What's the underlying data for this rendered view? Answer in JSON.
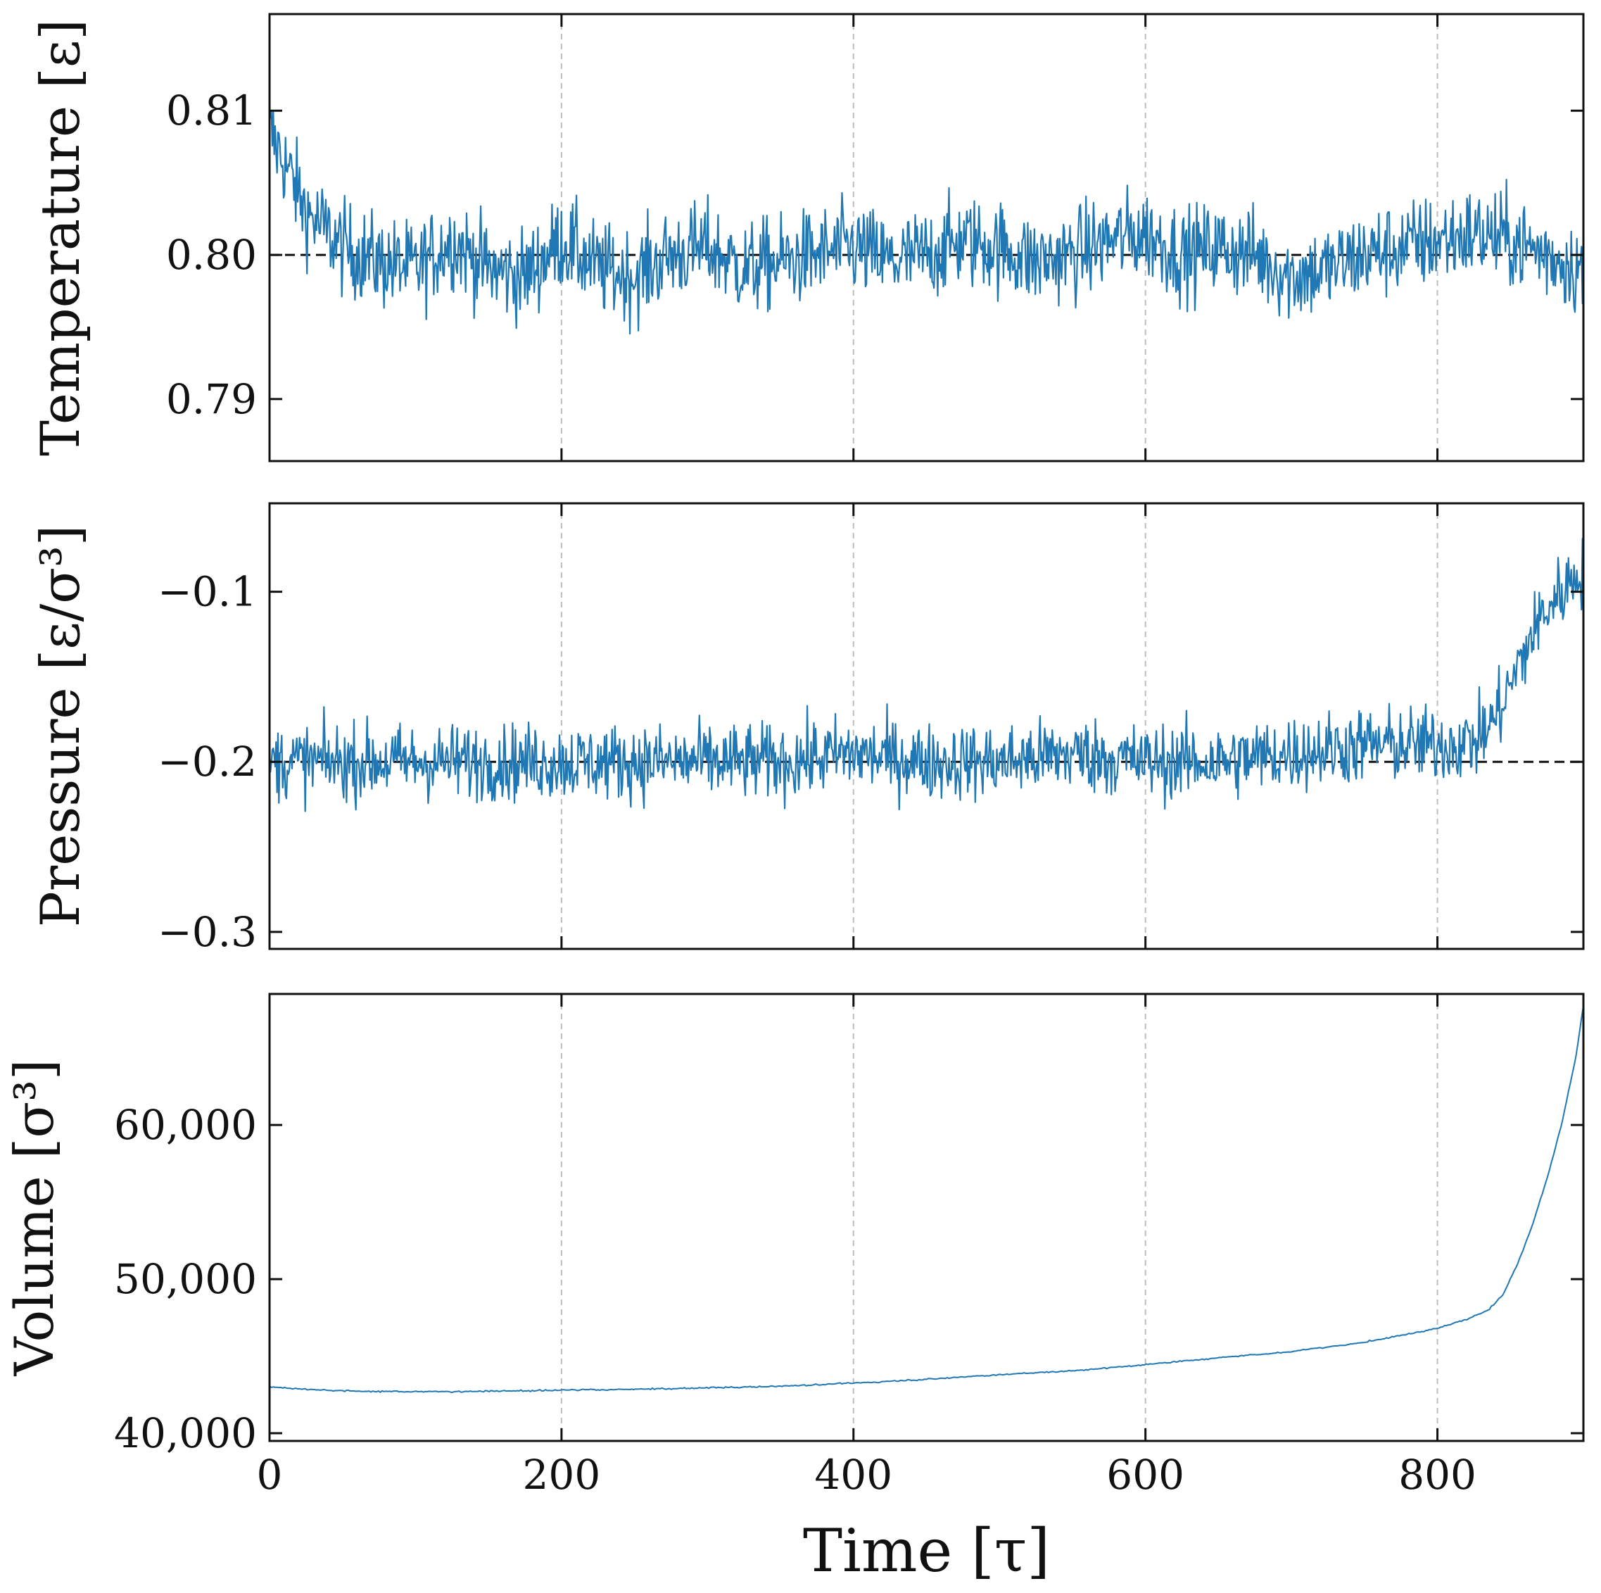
{
  "chart_data": [
    {
      "type": "line",
      "panel": "temperature",
      "ylabel": "Temperature [ε]",
      "ylim": [
        0.7857,
        0.8167
      ],
      "yticks": [
        0.79,
        0.8,
        0.81
      ],
      "ytick_labels": [
        "0.79",
        "0.80",
        "0.81"
      ],
      "xlim": [
        0,
        900
      ],
      "reference_line": 0.8,
      "color": "#1f77b4",
      "series": [
        {
          "name": "Temperature",
          "x": [
            0,
            10,
            25,
            50,
            75,
            100,
            125,
            150,
            175,
            200,
            225,
            250,
            275,
            300,
            325,
            350,
            375,
            400,
            425,
            450,
            475,
            500,
            525,
            550,
            575,
            600,
            625,
            650,
            675,
            700,
            725,
            750,
            775,
            800,
            825,
            850,
            875,
            900
          ],
          "y": [
            0.8085,
            0.8065,
            0.803,
            0.8005,
            0.7995,
            0.799,
            0.801,
            0.799,
            0.7985,
            0.801,
            0.799,
            0.7985,
            0.8,
            0.8005,
            0.799,
            0.7995,
            0.8,
            0.8005,
            0.7995,
            0.8,
            0.801,
            0.8005,
            0.7995,
            0.8,
            0.801,
            0.8015,
            0.8,
            0.8005,
            0.8,
            0.7985,
            0.799,
            0.8,
            0.8005,
            0.801,
            0.8015,
            0.801,
            0.8,
            0.799
          ]
        }
      ]
    },
    {
      "type": "line",
      "panel": "pressure",
      "ylabel": "Pressure [ε/σ³]",
      "ylim": [
        -0.31,
        -0.048
      ],
      "yticks": [
        -0.3,
        -0.2,
        -0.1
      ],
      "ytick_labels": [
        "−0.3",
        "−0.2",
        "−0.1"
      ],
      "xlim": [
        0,
        900
      ],
      "reference_line": -0.2,
      "color": "#1f77b4",
      "series": [
        {
          "name": "Pressure",
          "x": [
            0,
            50,
            100,
            150,
            200,
            250,
            300,
            350,
            400,
            450,
            500,
            550,
            600,
            650,
            700,
            750,
            800,
            825,
            835,
            845,
            855,
            865,
            875,
            885,
            900
          ],
          "y": [
            -0.2,
            -0.2,
            -0.2,
            -0.2,
            -0.2,
            -0.2,
            -0.2,
            -0.2,
            -0.195,
            -0.2,
            -0.2,
            -0.195,
            -0.2,
            -0.2,
            -0.195,
            -0.19,
            -0.19,
            -0.188,
            -0.18,
            -0.165,
            -0.145,
            -0.125,
            -0.11,
            -0.1,
            -0.085
          ]
        }
      ]
    },
    {
      "type": "line",
      "panel": "volume",
      "ylabel": "Volume [σ³]",
      "ylim": [
        39500,
        68500
      ],
      "yticks": [
        40000,
        50000,
        60000
      ],
      "ytick_labels": [
        "40,000",
        "50,000",
        "60,000"
      ],
      "xlim": [
        0,
        900
      ],
      "xticks": [
        0,
        200,
        400,
        600,
        800
      ],
      "xtick_labels": [
        "0",
        "200",
        "400",
        "600",
        "800"
      ],
      "xlabel": "Time [τ]",
      "color": "#1f77b4",
      "series": [
        {
          "name": "Volume",
          "x": [
            0,
            25,
            50,
            75,
            100,
            125,
            150,
            175,
            200,
            250,
            300,
            350,
            400,
            450,
            500,
            550,
            600,
            650,
            700,
            750,
            800,
            820,
            835,
            845,
            855,
            865,
            875,
            885,
            895,
            900
          ],
          "y": [
            43000,
            42850,
            42750,
            42700,
            42700,
            42700,
            42720,
            42750,
            42800,
            42850,
            42950,
            43050,
            43250,
            43500,
            43800,
            44050,
            44450,
            44900,
            45300,
            45900,
            46800,
            47400,
            48000,
            49000,
            51000,
            53500,
            56500,
            60000,
            64500,
            67800
          ]
        }
      ]
    }
  ]
}
